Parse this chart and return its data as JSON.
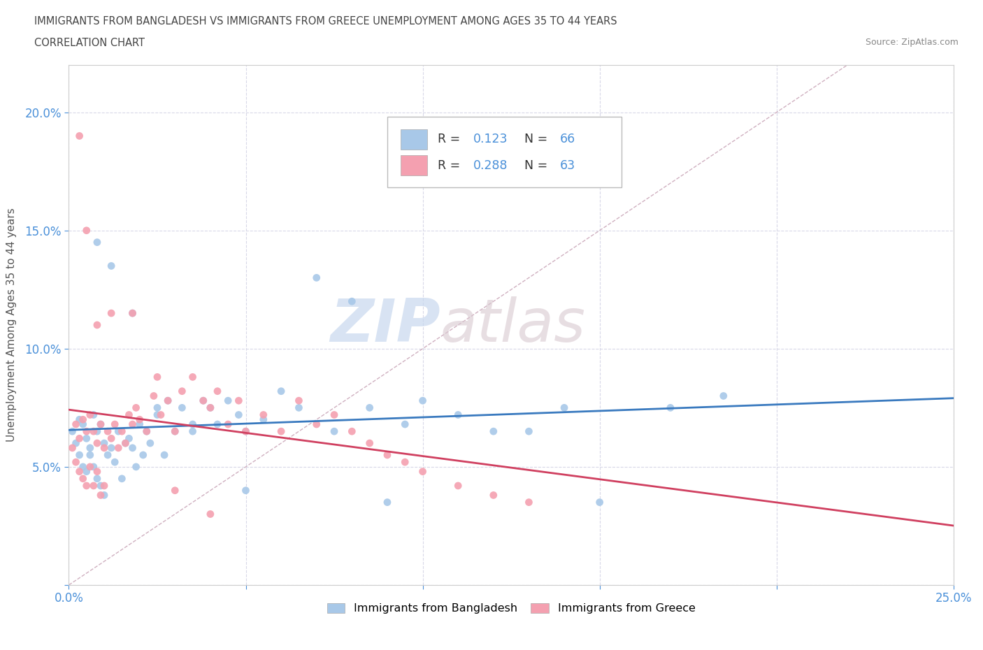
{
  "title_line1": "IMMIGRANTS FROM BANGLADESH VS IMMIGRANTS FROM GREECE UNEMPLOYMENT AMONG AGES 35 TO 44 YEARS",
  "title_line2": "CORRELATION CHART",
  "source_text": "Source: ZipAtlas.com",
  "ylabel": "Unemployment Among Ages 35 to 44 years",
  "xlim": [
    0.0,
    0.25
  ],
  "ylim": [
    0.0,
    0.22
  ],
  "watermark_zip": "ZIP",
  "watermark_atlas": "atlas",
  "legend_r1_label": "R = ",
  "legend_r1_val": "0.123",
  "legend_n1_label": "N = ",
  "legend_n1_val": "66",
  "legend_r2_label": "R = ",
  "legend_r2_val": "0.288",
  "legend_n2_label": "N = ",
  "legend_n2_val": "63",
  "color_bangladesh": "#a8c8e8",
  "color_greece": "#f4a0b0",
  "trendline_color_bangladesh": "#3a7abf",
  "trendline_color_greece": "#d04060",
  "diagonal_color": "#d0b0c0",
  "background_color": "#ffffff",
  "label_bangladesh": "Immigrants from Bangladesh",
  "label_greece": "Immigrants from Greece",
  "bangladesh_x": [
    0.001,
    0.002,
    0.003,
    0.003,
    0.004,
    0.004,
    0.005,
    0.005,
    0.006,
    0.006,
    0.007,
    0.007,
    0.008,
    0.008,
    0.009,
    0.009,
    0.01,
    0.01,
    0.011,
    0.012,
    0.013,
    0.014,
    0.015,
    0.016,
    0.017,
    0.018,
    0.019,
    0.02,
    0.021,
    0.022,
    0.023,
    0.025,
    0.027,
    0.028,
    0.03,
    0.032,
    0.035,
    0.038,
    0.04,
    0.042,
    0.045,
    0.048,
    0.05,
    0.055,
    0.06,
    0.065,
    0.07,
    0.075,
    0.08,
    0.085,
    0.09,
    0.095,
    0.1,
    0.11,
    0.12,
    0.13,
    0.14,
    0.15,
    0.17,
    0.185,
    0.008,
    0.012,
    0.018,
    0.025,
    0.035,
    0.05
  ],
  "bangladesh_y": [
    0.065,
    0.06,
    0.055,
    0.07,
    0.05,
    0.068,
    0.048,
    0.062,
    0.055,
    0.058,
    0.05,
    0.072,
    0.045,
    0.065,
    0.042,
    0.068,
    0.038,
    0.06,
    0.055,
    0.058,
    0.052,
    0.065,
    0.045,
    0.06,
    0.062,
    0.058,
    0.05,
    0.068,
    0.055,
    0.065,
    0.06,
    0.072,
    0.055,
    0.078,
    0.065,
    0.075,
    0.068,
    0.078,
    0.075,
    0.068,
    0.078,
    0.072,
    0.065,
    0.07,
    0.082,
    0.075,
    0.13,
    0.065,
    0.12,
    0.075,
    0.035,
    0.068,
    0.078,
    0.072,
    0.065,
    0.065,
    0.075,
    0.035,
    0.075,
    0.08,
    0.145,
    0.135,
    0.115,
    0.075,
    0.065,
    0.04
  ],
  "greece_x": [
    0.001,
    0.002,
    0.002,
    0.003,
    0.003,
    0.004,
    0.004,
    0.005,
    0.005,
    0.006,
    0.006,
    0.007,
    0.007,
    0.008,
    0.008,
    0.009,
    0.009,
    0.01,
    0.01,
    0.011,
    0.012,
    0.013,
    0.014,
    0.015,
    0.016,
    0.017,
    0.018,
    0.019,
    0.02,
    0.022,
    0.024,
    0.026,
    0.028,
    0.03,
    0.032,
    0.035,
    0.038,
    0.04,
    0.042,
    0.045,
    0.048,
    0.05,
    0.055,
    0.06,
    0.065,
    0.07,
    0.075,
    0.08,
    0.085,
    0.09,
    0.095,
    0.1,
    0.11,
    0.12,
    0.13,
    0.003,
    0.005,
    0.008,
    0.012,
    0.018,
    0.025,
    0.03,
    0.04
  ],
  "greece_y": [
    0.058,
    0.052,
    0.068,
    0.048,
    0.062,
    0.045,
    0.07,
    0.042,
    0.065,
    0.05,
    0.072,
    0.042,
    0.065,
    0.048,
    0.06,
    0.038,
    0.068,
    0.042,
    0.058,
    0.065,
    0.062,
    0.068,
    0.058,
    0.065,
    0.06,
    0.072,
    0.068,
    0.075,
    0.07,
    0.065,
    0.08,
    0.072,
    0.078,
    0.065,
    0.082,
    0.088,
    0.078,
    0.075,
    0.082,
    0.068,
    0.078,
    0.065,
    0.072,
    0.065,
    0.078,
    0.068,
    0.072,
    0.065,
    0.06,
    0.055,
    0.052,
    0.048,
    0.042,
    0.038,
    0.035,
    0.19,
    0.15,
    0.11,
    0.115,
    0.115,
    0.088,
    0.04,
    0.03
  ]
}
